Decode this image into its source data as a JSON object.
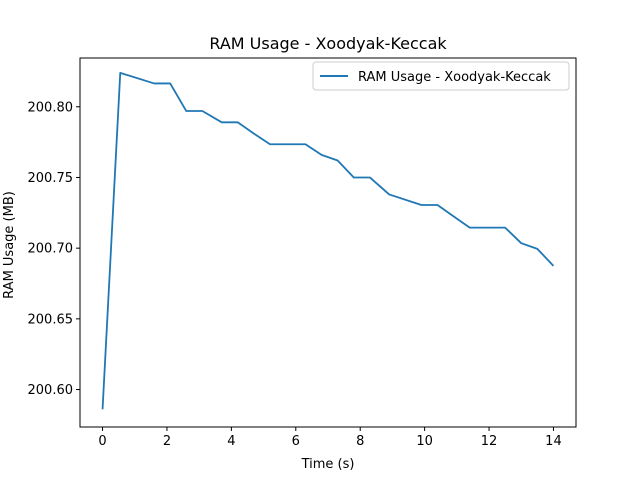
{
  "chart_data": {
    "type": "line",
    "title": "RAM Usage - Xoodyak-Keccak",
    "xlabel": "Time (s)",
    "ylabel": "RAM Usage (MB)",
    "xlim": [
      -0.7,
      14.7
    ],
    "ylim": [
      200.5735,
      200.8345
    ],
    "xticks": [
      0,
      2,
      4,
      6,
      8,
      10,
      12,
      14
    ],
    "xtick_labels": [
      "0",
      "2",
      "4",
      "6",
      "8",
      "10",
      "12",
      "14"
    ],
    "yticks": [
      200.6,
      200.65,
      200.7,
      200.75,
      200.8
    ],
    "ytick_labels": [
      "200.60",
      "200.65",
      "200.70",
      "200.75",
      "200.80"
    ],
    "grid": false,
    "legend_position": "top-right",
    "series": [
      {
        "name": "RAM Usage - Xoodyak-Keccak",
        "color": "#1f77b4",
        "x": [
          0.0,
          0.55,
          1.6,
          2.1,
          2.6,
          3.1,
          3.7,
          4.2,
          4.7,
          5.2,
          5.8,
          6.3,
          6.8,
          7.3,
          7.8,
          8.3,
          8.9,
          9.9,
          10.4,
          10.9,
          11.4,
          11.9,
          12.5,
          13.0,
          13.5,
          14.0
        ],
        "y": [
          200.586,
          200.824,
          200.8165,
          200.8165,
          200.797,
          200.797,
          200.789,
          200.789,
          200.781,
          200.7735,
          200.7735,
          200.7735,
          200.766,
          200.762,
          200.75,
          200.75,
          200.738,
          200.7305,
          200.7305,
          200.7225,
          200.7145,
          200.7145,
          200.7145,
          200.7035,
          200.6995,
          200.6875
        ]
      }
    ]
  }
}
